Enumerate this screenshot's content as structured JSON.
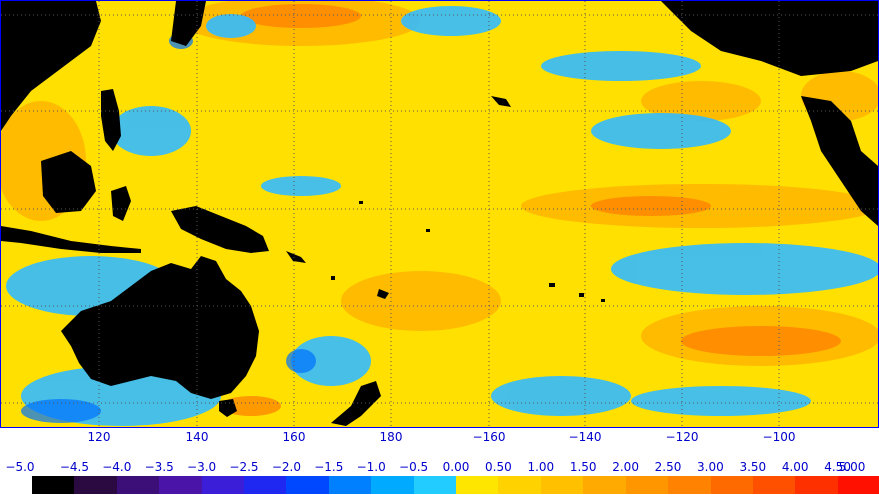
{
  "longitude_labels": [
    "120",
    "140",
    "160",
    "180",
    "−160",
    "−140",
    "−120",
    "−100"
  ],
  "longitude_values": [
    120,
    140,
    160,
    180,
    -160,
    -140,
    -120,
    -100
  ],
  "colorbar": {
    "labels": [
      "−5.0",
      "−4.5",
      "−4.0",
      "−3.5",
      "−3.0",
      "−2.5",
      "−2.0",
      "−1.5",
      "−1.0",
      "−0.5",
      "0.00",
      "0.50",
      "1.00",
      "1.50",
      "2.00",
      "2.50",
      "3.00",
      "3.50",
      "4.00",
      "4.50",
      "5.00"
    ],
    "colors": [
      "#000000",
      "#2a0a40",
      "#3c0f78",
      "#4a14a8",
      "#3a1ed8",
      "#1e28f0",
      "#0048ff",
      "#0080ff",
      "#00aaff",
      "#22ccff",
      "#ffe600",
      "#ffd200",
      "#ffc000",
      "#ffaa00",
      "#ff9600",
      "#ff8200",
      "#ff6a00",
      "#ff5000",
      "#ff3000",
      "#ff1000"
    ]
  },
  "map": {
    "ocean_color": "#ffe000",
    "land_color": "#000000",
    "grid_color": "#555555"
  }
}
